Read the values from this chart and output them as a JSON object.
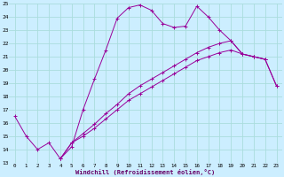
{
  "xlabel": "Windchill (Refroidissement éolien,°C)",
  "bg_color": "#cceeff",
  "line_color": "#990099",
  "grid_color": "#aadddd",
  "xlim": [
    -0.5,
    23.5
  ],
  "ylim": [
    13,
    25
  ],
  "xticks": [
    0,
    1,
    2,
    3,
    4,
    5,
    6,
    7,
    8,
    9,
    10,
    11,
    12,
    13,
    14,
    15,
    16,
    17,
    18,
    19,
    20,
    21,
    22,
    23
  ],
  "yticks": [
    13,
    14,
    15,
    16,
    17,
    18,
    19,
    20,
    21,
    22,
    23,
    24,
    25
  ],
  "line1_x": [
    0,
    1,
    2,
    3,
    4,
    5,
    6,
    7,
    8,
    9,
    10,
    11,
    12,
    13,
    14,
    15,
    16,
    17,
    18,
    19,
    20,
    21,
    22
  ],
  "line1_y": [
    16.5,
    15.0,
    14.0,
    14.5,
    13.3,
    14.2,
    17.0,
    19.3,
    21.5,
    23.9,
    24.7,
    24.9,
    24.5,
    23.5,
    23.2,
    23.3,
    24.8,
    24.0,
    23.0,
    22.2,
    21.2,
    21.0,
    20.8
  ],
  "line2_x": [
    4,
    5,
    6,
    7,
    8,
    9,
    10,
    11,
    12,
    13,
    14,
    15,
    16,
    17,
    18,
    19,
    20,
    21,
    22,
    23
  ],
  "line2_y": [
    13.3,
    14.5,
    15.2,
    15.9,
    16.7,
    17.4,
    18.2,
    18.8,
    19.3,
    19.8,
    20.3,
    20.8,
    21.3,
    21.7,
    22.0,
    22.2,
    21.2,
    21.0,
    20.8,
    18.8
  ],
  "line3_x": [
    4,
    5,
    6,
    7,
    8,
    9,
    10,
    11,
    12,
    13,
    14,
    15,
    16,
    17,
    18,
    19,
    20,
    21,
    22,
    23
  ],
  "line3_y": [
    13.3,
    14.5,
    15.0,
    15.6,
    16.3,
    17.0,
    17.7,
    18.2,
    18.7,
    19.2,
    19.7,
    20.2,
    20.7,
    21.0,
    21.3,
    21.5,
    21.2,
    21.0,
    20.8,
    18.8
  ]
}
